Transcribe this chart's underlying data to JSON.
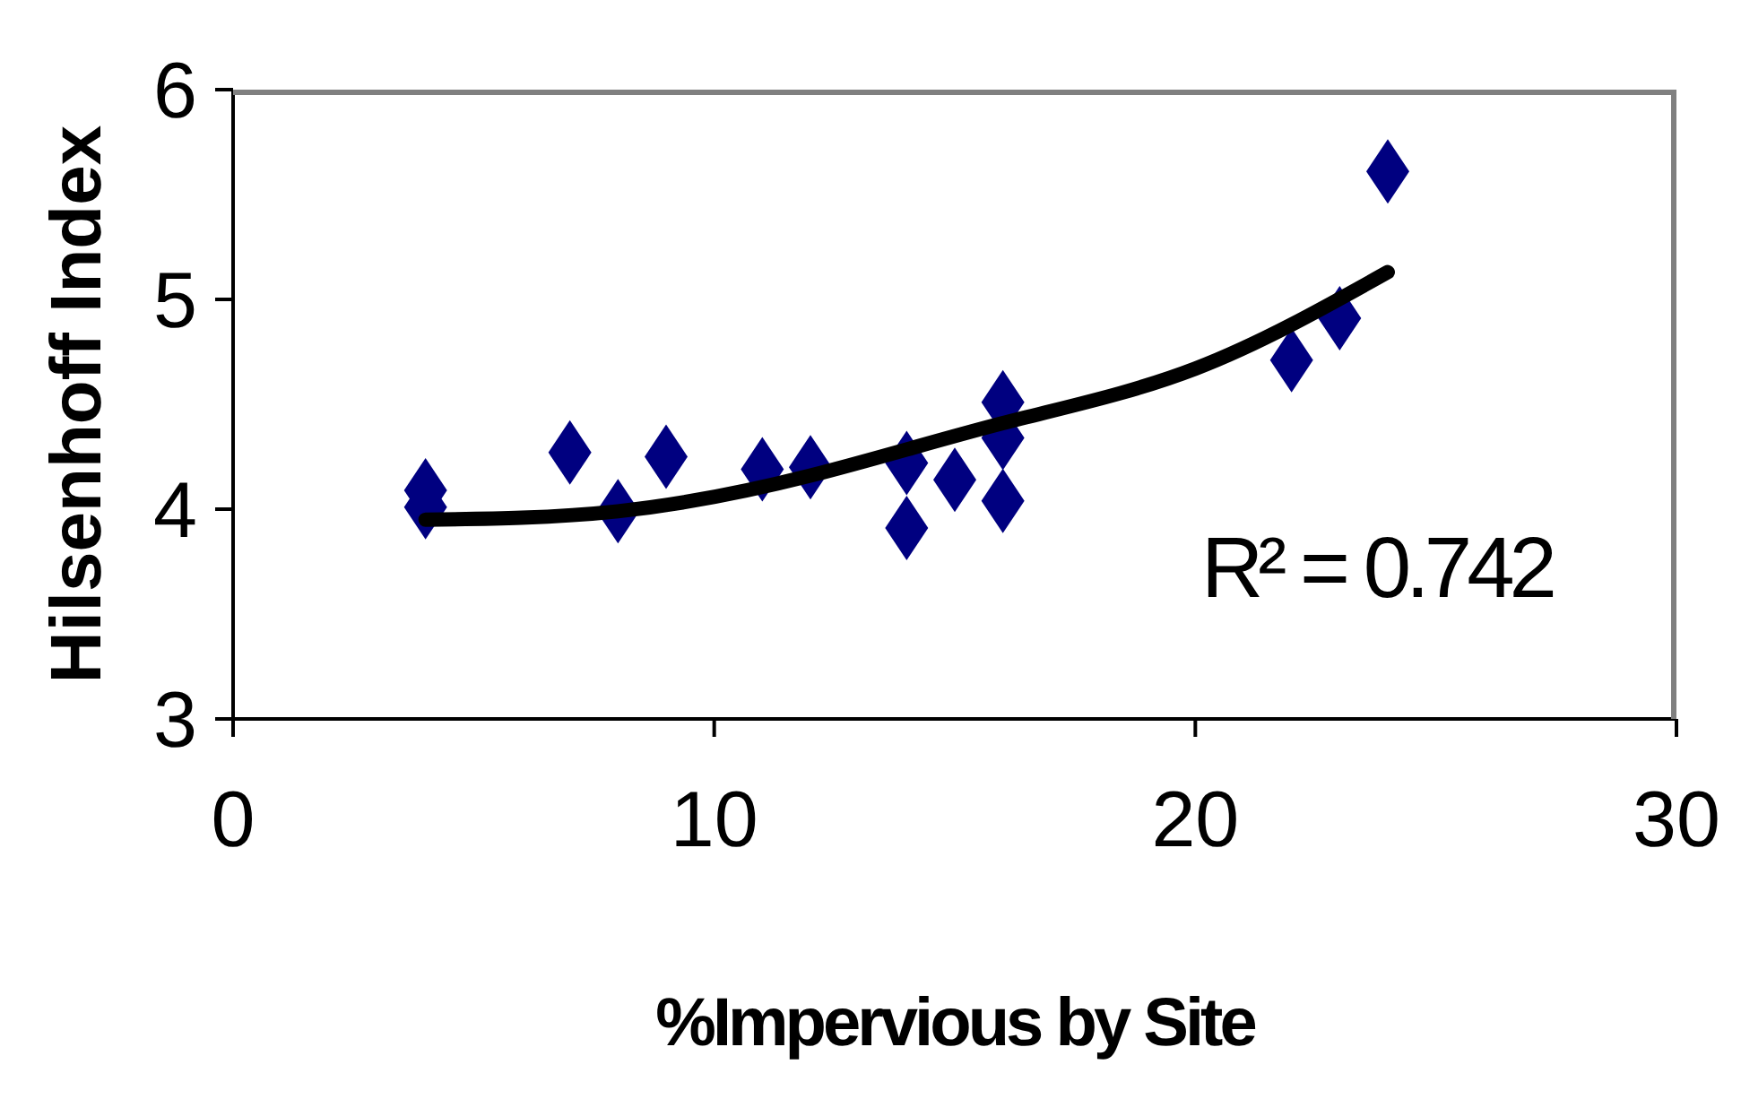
{
  "chart_data": {
    "type": "scatter",
    "xlabel": "%Impervious by Site",
    "ylabel": "Hilsenhoff Index",
    "xlim": [
      0,
      30
    ],
    "xticks": [
      0,
      10,
      20,
      30
    ],
    "ylim": [
      3,
      6
    ],
    "yticks": [
      3,
      4,
      5,
      6
    ],
    "grid": false,
    "marker": "diamond",
    "series": [
      {
        "color": "#000080",
        "x": [
          4,
          4,
          7,
          8,
          9,
          11,
          12,
          14,
          14,
          15,
          16,
          16,
          16,
          22,
          23,
          24
        ],
        "values": [
          4.09,
          4.01,
          4.27,
          3.99,
          4.25,
          4.19,
          4.2,
          4.22,
          3.91,
          4.14,
          4.51,
          4.34,
          4.04,
          4.71,
          4.91,
          5.61
        ]
      },
      {
        "type": "line",
        "color": "#000000",
        "marker": "none",
        "line_style": "solid",
        "x": [
          4,
          8,
          12,
          16,
          20,
          24
        ],
        "values": [
          3.95,
          3.99,
          4.16,
          4.41,
          4.67,
          5.13
        ]
      }
    ],
    "annotations": [
      "R² = 0.742"
    ]
  }
}
